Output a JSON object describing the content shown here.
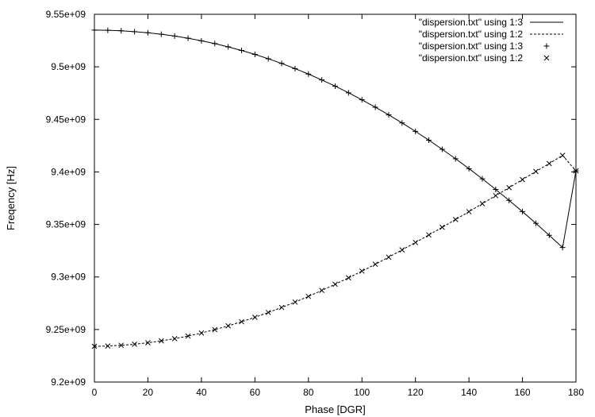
{
  "chart_data": {
    "type": "line",
    "title": "",
    "xlabel": "Phase [DGR]",
    "ylabel": "Freqency [Hz]",
    "xlim": [
      0,
      180
    ],
    "ylim": [
      9200000000,
      9550000000
    ],
    "grid": false,
    "legend_position": "top-right",
    "x_ticks": [
      0,
      20,
      40,
      60,
      80,
      100,
      120,
      140,
      160,
      180
    ],
    "x_tick_labels": [
      "0",
      "20",
      "40",
      "60",
      "80",
      "100",
      "120",
      "140",
      "160",
      "180"
    ],
    "y_ticks": [
      9200000000,
      9250000000,
      9300000000,
      9350000000,
      9400000000,
      9450000000,
      9500000000,
      9550000000
    ],
    "y_tick_labels": [
      "9.2e+09",
      "9.25e+09",
      "9.3e+09",
      "9.35e+09",
      "9.4e+09",
      "9.45e+09",
      "9.5e+09",
      "9.55e+09"
    ],
    "x": [
      0,
      5,
      10,
      15,
      20,
      25,
      30,
      35,
      40,
      45,
      50,
      55,
      60,
      65,
      70,
      75,
      80,
      85,
      90,
      95,
      100,
      105,
      110,
      115,
      120,
      125,
      130,
      135,
      140,
      145,
      150,
      155,
      160,
      165,
      170,
      175,
      180
    ],
    "series": [
      {
        "name": "\"dispersion.txt\" using 1:3",
        "style": "line-solid",
        "values": [
          9535000000,
          9534800000,
          9534300000,
          9533500000,
          9532400000,
          9531000000,
          9529300000,
          9527200000,
          9524800000,
          9522100000,
          9519000000,
          9515600000,
          9511800000,
          9507700000,
          9503200000,
          9498300000,
          9493100000,
          9487500000,
          9481600000,
          9475300000,
          9468600000,
          9461600000,
          9454300000,
          9446600000,
          9438600000,
          9430200000,
          9421500000,
          9412500000,
          9403100000,
          9393400000,
          9383300000,
          9372900000,
          9362200000,
          9351100000,
          9339700000,
          9328000000,
          9401000000
        ]
      },
      {
        "name": "\"dispersion.txt\" using 1:2",
        "style": "line-dashed",
        "values": [
          9234000000,
          9234300000,
          9235000000,
          9236000000,
          9237400000,
          9239200000,
          9241300000,
          9243800000,
          9246700000,
          9249900000,
          9253500000,
          9257400000,
          9261600000,
          9266200000,
          9271000000,
          9276100000,
          9281500000,
          9287200000,
          9293100000,
          9299200000,
          9305600000,
          9312100000,
          9318900000,
          9325800000,
          9332800000,
          9340000000,
          9347300000,
          9354700000,
          9362200000,
          9369800000,
          9377400000,
          9385000000,
          9392700000,
          9400400000,
          9408000000,
          9415700000,
          9401000000
        ]
      },
      {
        "name": "\"dispersion.txt\" using 1:3",
        "style": "marker-plus",
        "values": [
          9535000000,
          9534800000,
          9534300000,
          9533500000,
          9532400000,
          9531000000,
          9529300000,
          9527200000,
          9524800000,
          9522100000,
          9519000000,
          9515600000,
          9511800000,
          9507700000,
          9503200000,
          9498300000,
          9493100000,
          9487500000,
          9481600000,
          9475300000,
          9468600000,
          9461600000,
          9454300000,
          9446600000,
          9438600000,
          9430200000,
          9421500000,
          9412500000,
          9403100000,
          9393400000,
          9383300000,
          9372900000,
          9362200000,
          9351100000,
          9339700000,
          9328000000,
          9401000000
        ]
      },
      {
        "name": "\"dispersion.txt\" using 1:2",
        "style": "marker-x",
        "values": [
          9234000000,
          9234300000,
          9235000000,
          9236000000,
          9237400000,
          9239200000,
          9241300000,
          9243800000,
          9246700000,
          9249900000,
          9253500000,
          9257400000,
          9261600000,
          9266200000,
          9271000000,
          9276100000,
          9281500000,
          9287200000,
          9293100000,
          9299200000,
          9305600000,
          9312100000,
          9318900000,
          9325800000,
          9332800000,
          9340000000,
          9347300000,
          9354700000,
          9362200000,
          9369800000,
          9377400000,
          9385000000,
          9392700000,
          9400400000,
          9408000000,
          9415700000,
          9401000000
        ]
      }
    ]
  }
}
